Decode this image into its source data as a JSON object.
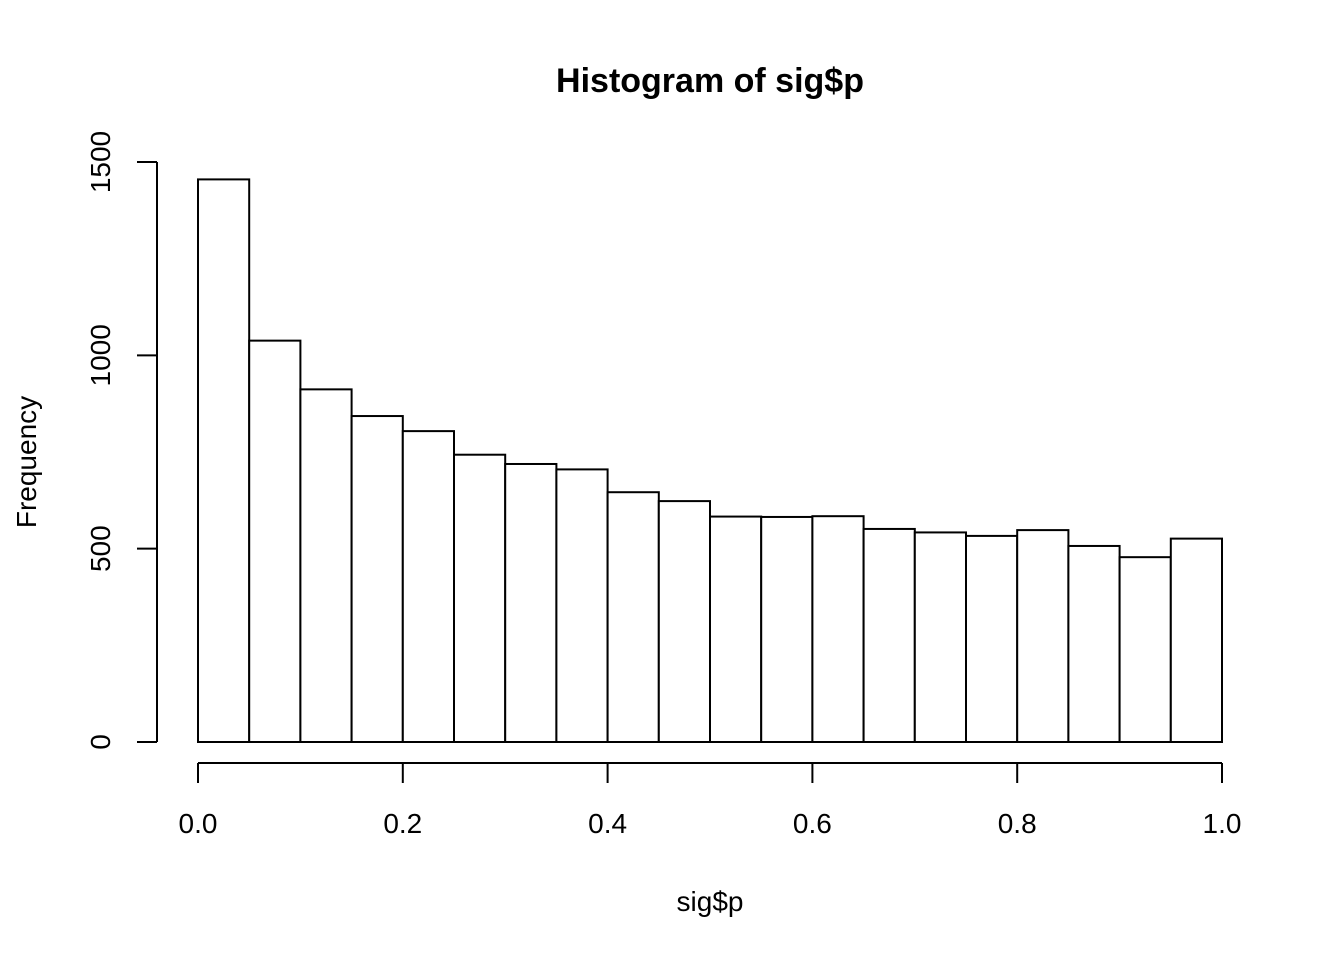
{
  "chart_data": {
    "type": "bar",
    "title": "Histogram of sig$p",
    "xlabel": "sig$p",
    "ylabel": "Frequency",
    "bin_edges": [
      0.0,
      0.05,
      0.1,
      0.15,
      0.2,
      0.25,
      0.3,
      0.35,
      0.4,
      0.45,
      0.5,
      0.55,
      0.6,
      0.65,
      0.7,
      0.75,
      0.8,
      0.85,
      0.9,
      0.95,
      1.0
    ],
    "values": [
      1455,
      1038,
      912,
      843,
      804,
      743,
      719,
      705,
      646,
      623,
      583,
      582,
      584,
      551,
      542,
      533,
      548,
      507,
      478,
      526
    ],
    "xlim": [
      0,
      1
    ],
    "ylim": [
      0,
      1500
    ],
    "x_ticks": [
      0.0,
      0.2,
      0.4,
      0.6,
      0.8,
      1.0
    ],
    "x_tick_labels": [
      "0.0",
      "0.2",
      "0.4",
      "0.6",
      "0.8",
      "1.0"
    ],
    "y_ticks": [
      0,
      500,
      1000,
      1500
    ],
    "y_tick_labels": [
      "0",
      "500",
      "1000",
      "1500"
    ],
    "grid": false,
    "legend": "none",
    "colors": {
      "bar_fill": "#ffffff",
      "bar_stroke": "#000000",
      "axis": "#000000",
      "text": "#000000"
    }
  }
}
